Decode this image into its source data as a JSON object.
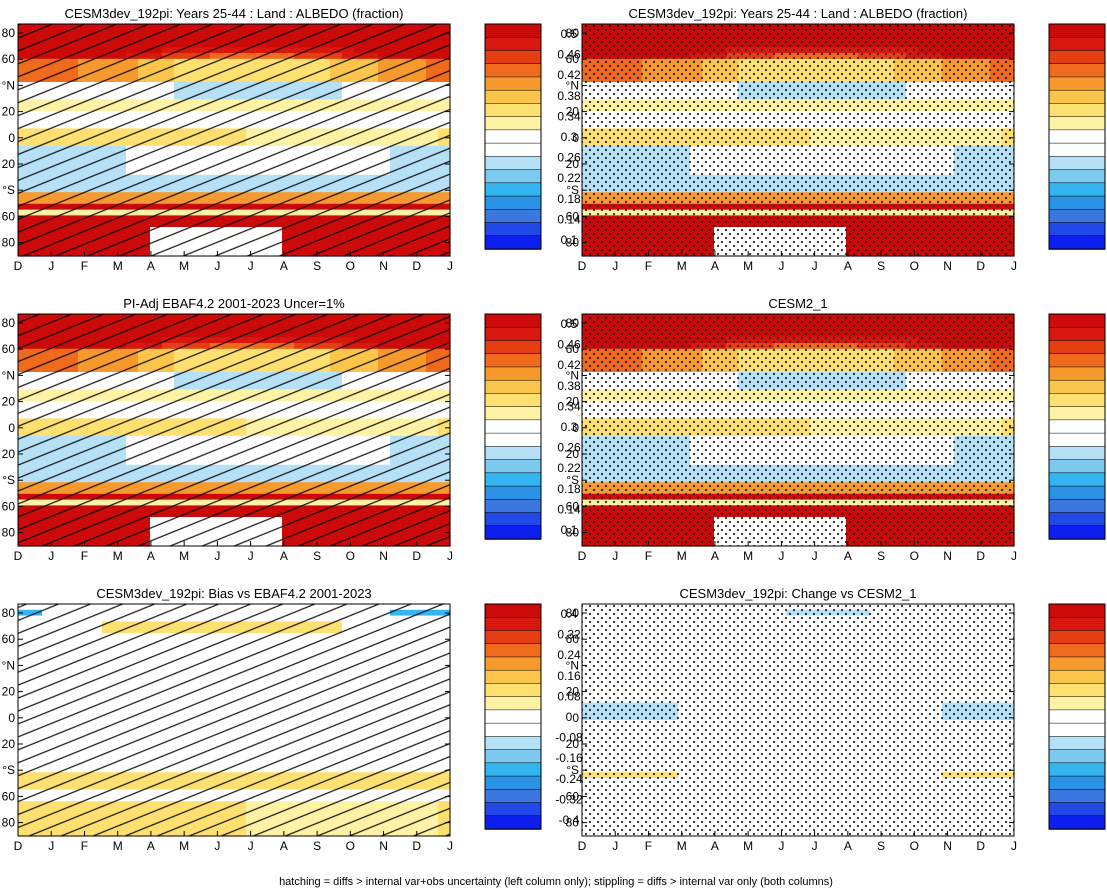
{
  "footer": "hatching = diffs > internal var+obs uncertainty (left column only); stippling = diffs > internal var only (both columns)",
  "colors": {
    "albedo_palette": [
      "#0d1ff0",
      "#2149e8",
      "#3a78e0",
      "#2b93e6",
      "#33b6ef",
      "#7ccaf0",
      "#b6e0f6",
      "#ffffff",
      "#ffffff",
      "#fff2a4",
      "#fde070",
      "#fac54a",
      "#f79a2e",
      "#f06a1c",
      "#e53e12",
      "#d8170e",
      "#cc0a0a"
    ],
    "diff_palette": [
      "#0d1ff0",
      "#2149e8",
      "#3a78e0",
      "#2b93e6",
      "#33b6ef",
      "#7ccaf0",
      "#b6e0f6",
      "#ffffff",
      "#ffffff",
      "#fff2a4",
      "#fde070",
      "#fac54a",
      "#f79a2e",
      "#f06a1c",
      "#e53e12",
      "#d8170e",
      "#cc0a0a"
    ]
  },
  "axes": {
    "months": [
      "D",
      "J",
      "F",
      "M",
      "A",
      "M",
      "J",
      "J",
      "A",
      "S",
      "O",
      "N",
      "D",
      "J"
    ],
    "lat_labels": [
      "80",
      "60",
      "°N",
      "20",
      "0",
      "20",
      "°S",
      "60",
      "80"
    ]
  },
  "colorbars": {
    "albedo": [
      "0.5",
      "0.46",
      "0.42",
      "0.38",
      "0.34",
      "0.3",
      "0.26",
      "0.22",
      "0.18",
      "0.14",
      "0.1"
    ],
    "diff": [
      "0.4",
      "0.32",
      "0.24",
      "0.16",
      "0.08",
      "0",
      "-0.08",
      "-0.16",
      "-0.24",
      "-0.32",
      "-0.4"
    ]
  },
  "chart_data": [
    {
      "type": "heatmap",
      "title": "CESM3dev_192pi: Years 25-44 : Land : ALBEDO (fraction)",
      "overlay": "hatching",
      "colorbar": "albedo",
      "x": [
        "D",
        "J",
        "F",
        "M",
        "A",
        "M",
        "J",
        "J",
        "A",
        "S",
        "O",
        "N",
        "D",
        "J"
      ],
      "y": [
        "80",
        "60",
        "°N",
        "20",
        "0",
        "20",
        "°S",
        "60",
        "80"
      ]
    },
    {
      "type": "heatmap",
      "title": "CESM3dev_192pi: Years 25-44 : Land : ALBEDO (fraction)",
      "overlay": "stippling",
      "colorbar": "albedo",
      "x": [
        "D",
        "J",
        "F",
        "M",
        "A",
        "M",
        "J",
        "J",
        "A",
        "S",
        "O",
        "N",
        "D",
        "J"
      ],
      "y": [
        "80",
        "60",
        "°N",
        "20",
        "0",
        "20",
        "°S",
        "60",
        "80"
      ]
    },
    {
      "type": "heatmap",
      "title": "PI-Adj EBAF4.2 2001-2023 Uncer=1%",
      "overlay": "hatching",
      "colorbar": "albedo",
      "x": [
        "D",
        "J",
        "F",
        "M",
        "A",
        "M",
        "J",
        "J",
        "A",
        "S",
        "O",
        "N",
        "D",
        "J"
      ],
      "y": [
        "80",
        "60",
        "°N",
        "20",
        "0",
        "20",
        "°S",
        "60",
        "80"
      ]
    },
    {
      "type": "heatmap",
      "title": "CESM2_1",
      "overlay": "stippling",
      "colorbar": "albedo",
      "x": [
        "D",
        "J",
        "F",
        "M",
        "A",
        "M",
        "J",
        "J",
        "A",
        "S",
        "O",
        "N",
        "D",
        "J"
      ],
      "y": [
        "80",
        "60",
        "°N",
        "20",
        "0",
        "20",
        "°S",
        "60",
        "80"
      ]
    },
    {
      "type": "heatmap",
      "title": "CESM3dev_192pi: Bias vs EBAF4.2 2001-2023",
      "overlay": "hatching",
      "colorbar": "diff",
      "x": [
        "D",
        "J",
        "F",
        "M",
        "A",
        "M",
        "J",
        "J",
        "A",
        "S",
        "O",
        "N",
        "D",
        "J"
      ],
      "y": [
        "80",
        "60",
        "°N",
        "20",
        "0",
        "20",
        "°S",
        "60",
        "80"
      ]
    },
    {
      "type": "heatmap",
      "title": "CESM3dev_192pi: Change vs CESM2_1",
      "overlay": "stippling",
      "colorbar": "diff",
      "x": [
        "D",
        "J",
        "F",
        "M",
        "A",
        "M",
        "J",
        "J",
        "A",
        "S",
        "O",
        "N",
        "D",
        "J"
      ],
      "y": [
        "80",
        "60",
        "°N",
        "20",
        "0",
        "20",
        "°S",
        "60",
        "80"
      ]
    }
  ]
}
